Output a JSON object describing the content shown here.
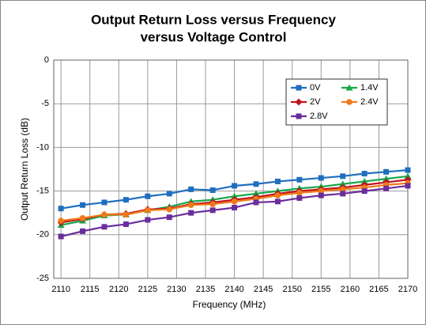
{
  "chart_data": {
    "type": "line",
    "title": [
      "Output Return Loss versus Frequency",
      "versus Voltage Control"
    ],
    "x_label": "Frequency (MHz)",
    "y_label": "Output Return Loss (dB)",
    "x": [
      2110,
      2113.75,
      2117.5,
      2121.25,
      2125,
      2128.75,
      2132.5,
      2136.25,
      2140,
      2143.75,
      2147.5,
      2151.25,
      2155,
      2158.75,
      2162.5,
      2166.25,
      2170
    ],
    "series": [
      {
        "name": "0V",
        "color": "#1f6fbf",
        "marker": "square",
        "values": [
          -17,
          -16.6,
          -16.3,
          -16.0,
          -15.6,
          -15.3,
          -14.8,
          -14.9,
          -14.4,
          -14.2,
          -13.9,
          -13.7,
          -13.5,
          -13.3,
          -13.0,
          -12.8,
          -12.6
        ]
      },
      {
        "name": "1.4V",
        "color": "#1aa64a",
        "marker": "triangle",
        "values": [
          -18.9,
          -18.4,
          -17.8,
          -17.7,
          -17.2,
          -16.8,
          -16.2,
          -16.0,
          -15.6,
          -15.3,
          -15.0,
          -14.7,
          -14.5,
          -14.2,
          -13.9,
          -13.6,
          -13.3
        ]
      },
      {
        "name": "2V",
        "color": "#c0141c",
        "marker": "diamond",
        "values": [
          -18.6,
          -18.2,
          -17.7,
          -17.6,
          -17.1,
          -17.0,
          -16.5,
          -16.3,
          -16.0,
          -15.7,
          -15.3,
          -15.0,
          -14.8,
          -14.6,
          -14.3,
          -14.0,
          -13.7
        ]
      },
      {
        "name": "2.4V",
        "color": "#f07a1a",
        "marker": "circle",
        "values": [
          -18.4,
          -18.1,
          -17.7,
          -17.7,
          -17.2,
          -17.1,
          -16.6,
          -16.5,
          -16.2,
          -15.9,
          -15.5,
          -15.2,
          -15.0,
          -14.8,
          -14.6,
          -14.3,
          -14.1
        ]
      },
      {
        "name": "2.8V",
        "color": "#6a2d9a",
        "marker": "square",
        "values": [
          -20.2,
          -19.6,
          -19.1,
          -18.8,
          -18.3,
          -18.0,
          -17.5,
          -17.2,
          -16.9,
          -16.3,
          -16.2,
          -15.8,
          -15.5,
          -15.3,
          -15.0,
          -14.7,
          -14.4
        ]
      }
    ],
    "xlim": [
      2108.75,
      2170
    ],
    "xticks": [
      2110,
      2115,
      2120,
      2125,
      2130,
      2135,
      2140,
      2145,
      2150,
      2155,
      2160,
      2165,
      2170
    ],
    "ylim": [
      -25,
      0
    ],
    "yticks": [
      -25,
      -20,
      -15,
      -10,
      -5,
      0
    ],
    "grid": true,
    "legend": "upper right"
  }
}
